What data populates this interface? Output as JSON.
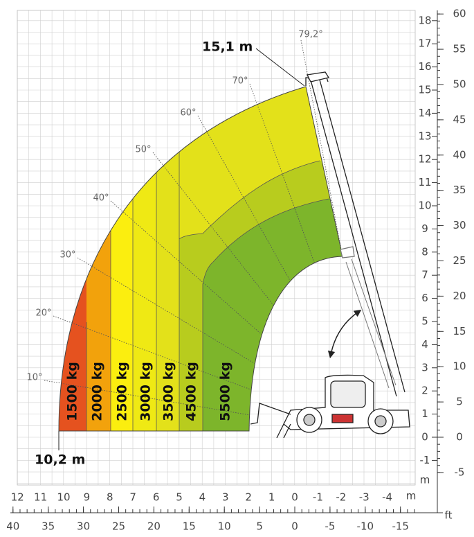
{
  "dimensions": {
    "max_height": "15,1 m",
    "max_reach": "10,2 m"
  },
  "angles": [
    "10°",
    "20°",
    "30°",
    "40°",
    "50°",
    "60°",
    "70°",
    "79,2°"
  ],
  "loads": [
    "1500 kg",
    "2000 kg",
    "2500 kg",
    "3000 kg",
    "3500 kg",
    "4500 kg",
    "5500 kg"
  ],
  "axes": {
    "meter_unit": "m",
    "feet_unit": "ft",
    "meter_vertical_ticks": [
      -1,
      0,
      1,
      2,
      3,
      4,
      5,
      6,
      7,
      8,
      9,
      10,
      11,
      12,
      13,
      14,
      15,
      16,
      17,
      18
    ],
    "feet_vertical_ticks": [
      -5,
      0,
      5,
      10,
      15,
      20,
      25,
      30,
      35,
      40,
      45,
      50,
      55,
      60
    ],
    "meter_horizontal_ticks": [
      12,
      11,
      10,
      9,
      8,
      7,
      6,
      5,
      4,
      3,
      2,
      1,
      0,
      -1,
      -2,
      -3,
      -4
    ],
    "feet_horizontal_ticks": [
      40,
      35,
      30,
      25,
      20,
      15,
      10,
      5,
      0,
      -5,
      -10,
      -15
    ]
  }
}
